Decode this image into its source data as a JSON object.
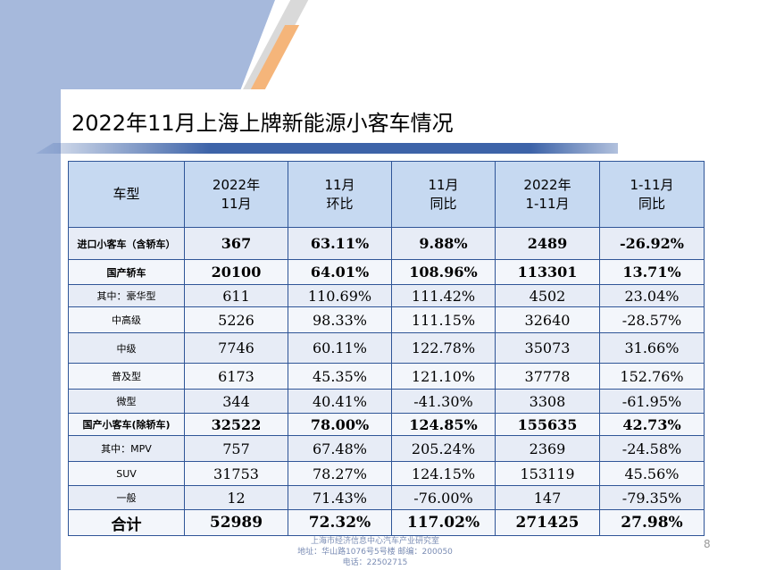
{
  "slide": {
    "title": "2022年11月上海上牌新能源小客车情况",
    "page_number": "8"
  },
  "table": {
    "headers": [
      {
        "line1": "车型",
        "line2": ""
      },
      {
        "line1": "2022年",
        "line2": "11月"
      },
      {
        "line1": "11月",
        "line2": "环比"
      },
      {
        "line1": "11月",
        "line2": "同比"
      },
      {
        "line1": "2022年",
        "line2": "1-11月"
      },
      {
        "line1": "1-11月",
        "line2": "同比"
      }
    ],
    "rows": [
      {
        "label": "进口小客车（含轿车）",
        "nov": "367",
        "mom": "63.11%",
        "yoy": "9.88%",
        "ytd": "2489",
        "ytd_yoy": "-26.92%"
      },
      {
        "label": "国产轿车",
        "nov": "20100",
        "mom": "64.01%",
        "yoy": "108.96%",
        "ytd": "113301",
        "ytd_yoy": "13.71%"
      },
      {
        "label": "其中：豪华型",
        "nov": "611",
        "mom": "110.69%",
        "yoy": "111.42%",
        "ytd": "4502",
        "ytd_yoy": "23.04%"
      },
      {
        "label": "中高级",
        "nov": "5226",
        "mom": "98.33%",
        "yoy": "111.15%",
        "ytd": "32640",
        "ytd_yoy": "-28.57%"
      },
      {
        "label": "中级",
        "nov": "7746",
        "mom": "60.11%",
        "yoy": "122.78%",
        "ytd": "35073",
        "ytd_yoy": "31.66%"
      },
      {
        "label": "普及型",
        "nov": "6173",
        "mom": "45.35%",
        "yoy": "121.10%",
        "ytd": "37778",
        "ytd_yoy": "152.76%"
      },
      {
        "label": "微型",
        "nov": "344",
        "mom": "40.41%",
        "yoy": "-41.30%",
        "ytd": "3308",
        "ytd_yoy": "-61.95%"
      },
      {
        "label": "国产小客车(除轿车)",
        "nov": "32522",
        "mom": "78.00%",
        "yoy": "124.85%",
        "ytd": "155635",
        "ytd_yoy": "42.73%"
      },
      {
        "label": "其中：MPV",
        "nov": "757",
        "mom": "67.48%",
        "yoy": "205.24%",
        "ytd": "2369",
        "ytd_yoy": "-24.58%"
      },
      {
        "label": "SUV",
        "nov": "31753",
        "mom": "78.27%",
        "yoy": "124.15%",
        "ytd": "153119",
        "ytd_yoy": "45.56%"
      },
      {
        "label": "一般",
        "nov": "12",
        "mom": "71.43%",
        "yoy": "-76.00%",
        "ytd": "147",
        "ytd_yoy": "-79.35%"
      },
      {
        "label": "合计",
        "nov": "52989",
        "mom": "72.32%",
        "yoy": "117.02%",
        "ytd": "271425",
        "ytd_yoy": "27.98%"
      }
    ]
  },
  "footer": {
    "line1": "上海市经济信息中心汽车产业研究室",
    "line2": "地址：华山路1076号5号楼    邮编：200050",
    "line3": "电话：22502715"
  },
  "colors": {
    "header_fill": "#c6d9f1",
    "table_border": "#2f5597",
    "band": "#a6b9dc",
    "accent_orange": "#f5b57a"
  }
}
